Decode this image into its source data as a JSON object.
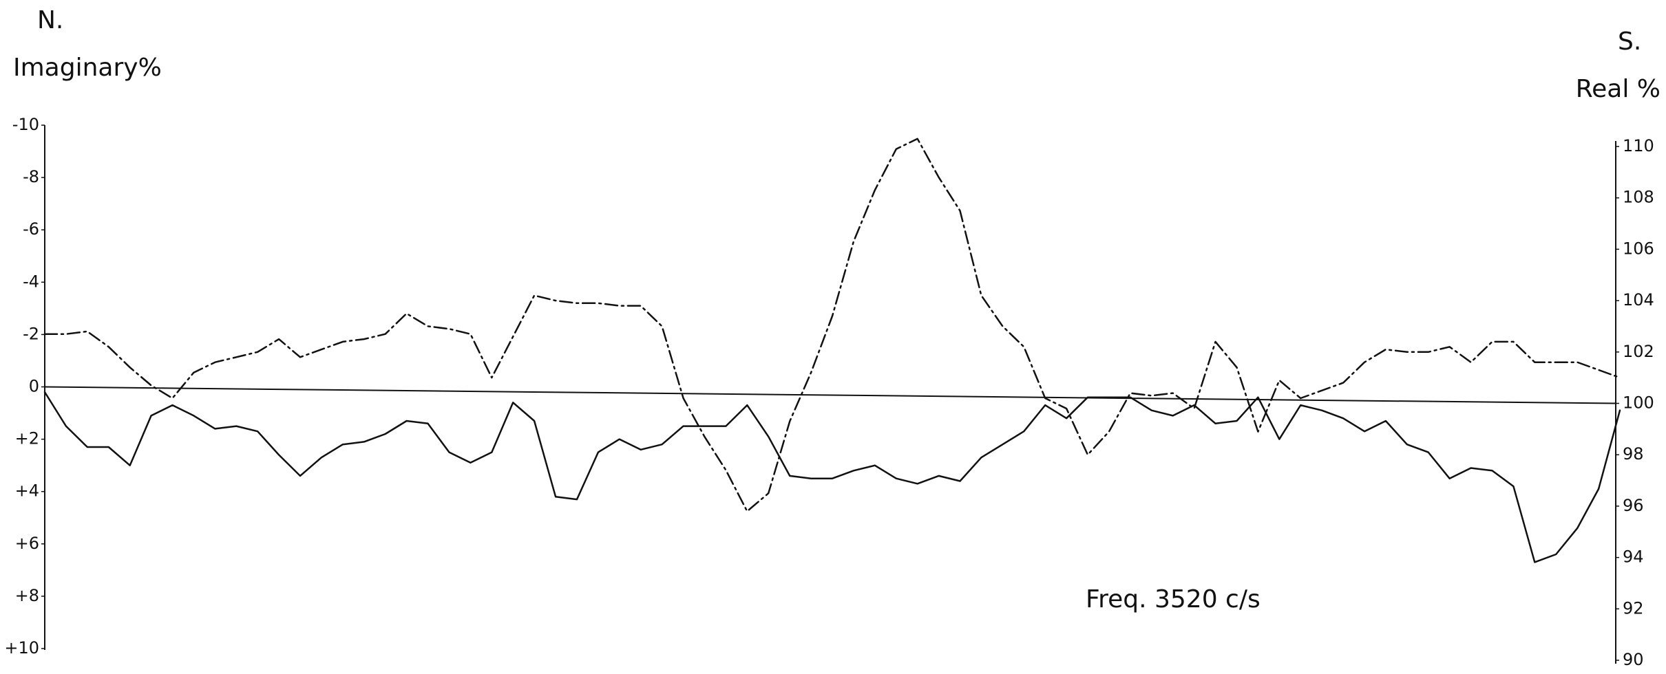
{
  "chart_data": {
    "type": "line",
    "title": "Freq. 3520 c/s",
    "y_label_mark": "N.",
    "y_label": "Imaginary%",
    "y2_label_mark": "S.",
    "y2_label": "Real %",
    "ylim": [
      10,
      -10
    ],
    "yticks": [
      -10,
      -8,
      -6,
      -4,
      -2,
      0,
      {
        "value": 2,
        "label": "+2"
      },
      {
        "value": 4,
        "label": "+4"
      },
      {
        "value": 6,
        "label": "+6"
      },
      {
        "value": 8,
        "label": "+8"
      },
      {
        "value": 10,
        "label": "+10"
      }
    ],
    "y2lim": [
      90,
      110
    ],
    "y2ticks": [
      90,
      92,
      94,
      96,
      98,
      100,
      102,
      104,
      106,
      108,
      110
    ],
    "series": [
      {
        "color": "#111111",
        "line_style": "solid",
        "values": [
          0.2,
          1.5,
          2.3,
          2.3,
          3.0,
          1.1,
          0.7,
          1.1,
          1.6,
          1.5,
          1.7,
          2.6,
          3.4,
          2.7,
          2.2,
          2.1,
          1.8,
          1.3,
          1.4,
          2.5,
          2.9,
          2.5,
          0.6,
          1.3,
          4.2,
          4.3,
          2.5,
          2.0,
          2.4,
          2.2,
          1.5,
          1.5,
          1.5,
          0.7,
          1.9,
          3.4,
          3.5,
          3.5,
          3.2,
          3.0,
          3.5,
          3.7,
          3.4,
          3.6,
          2.7,
          2.2,
          1.7,
          0.7,
          1.2,
          0.4,
          0.4,
          0.4,
          0.9,
          1.1,
          0.7,
          1.4,
          1.3,
          0.4,
          2.0,
          0.7,
          0.9,
          1.2,
          1.7,
          1.3,
          2.2,
          2.5,
          3.5,
          3.1,
          3.2,
          3.8,
          6.7,
          6.4,
          5.4,
          3.9,
          0.9
        ]
      },
      {
        "color": "#111111",
        "line_style": "dashdot",
        "axis": "y2",
        "values": [
          102.7,
          102.7,
          102.8,
          102.2,
          101.4,
          100.7,
          100.2,
          101.2,
          101.6,
          101.8,
          102.0,
          102.5,
          101.8,
          102.1,
          102.4,
          102.5,
          102.7,
          103.5,
          103.0,
          102.9,
          102.7,
          101.0,
          102.6,
          104.2,
          104.0,
          103.9,
          103.9,
          103.8,
          103.8,
          103.0,
          100.2,
          98.7,
          97.4,
          95.8,
          96.5,
          99.3,
          101.2,
          103.4,
          106.3,
          108.3,
          109.9,
          110.3,
          108.8,
          107.5,
          104.2,
          103.0,
          102.2,
          100.2,
          99.8,
          98.0,
          98.9,
          100.4,
          100.3,
          100.4,
          99.8,
          102.4,
          101.4,
          98.9,
          100.9,
          100.2,
          100.5,
          100.8,
          101.6,
          102.1,
          102.0,
          102.0,
          102.2,
          101.6,
          102.4,
          102.4,
          101.6,
          101.6,
          101.6,
          101.3,
          101.0
        ]
      }
    ]
  }
}
